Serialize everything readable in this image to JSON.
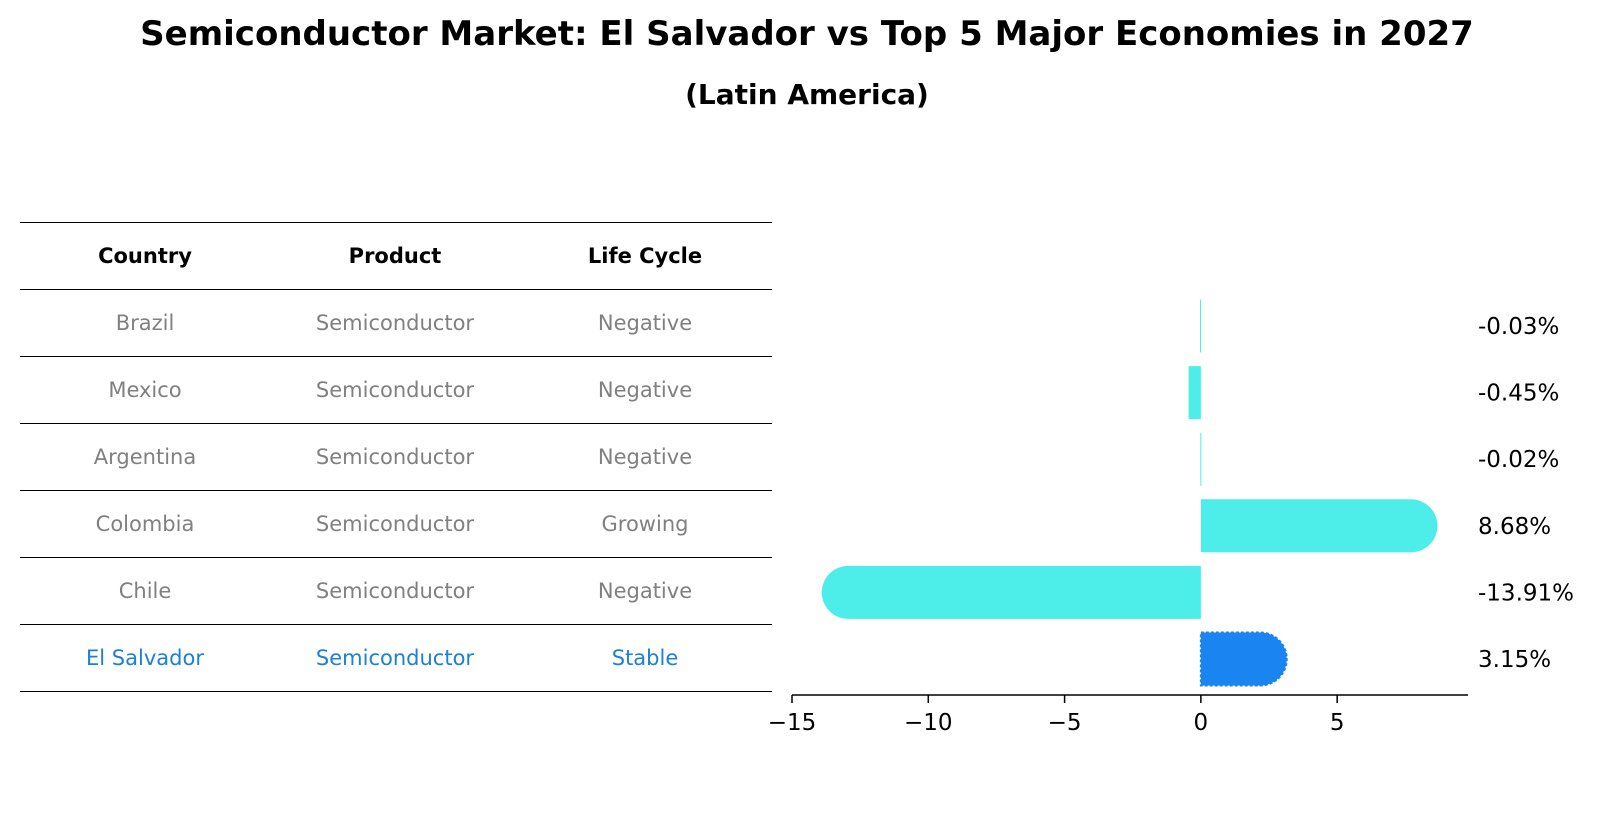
{
  "title": "Semiconductor Market: El Salvador vs Top 5 Major Economies in 2027",
  "subtitle": "(Latin America)",
  "table": {
    "headers": [
      "Country",
      "Product",
      "Life Cycle"
    ],
    "rows": [
      [
        "Brazil",
        "Semiconductor",
        "Negative"
      ],
      [
        "Mexico",
        "Semiconductor",
        "Negative"
      ],
      [
        "Argentina",
        "Semiconductor",
        "Negative"
      ],
      [
        "Colombia",
        "Semiconductor",
        "Growing"
      ],
      [
        "Chile",
        "Semiconductor",
        "Negative"
      ],
      [
        "El Salvador",
        "Semiconductor",
        "Stable"
      ]
    ]
  },
  "chart_data": {
    "type": "bar",
    "orientation": "horizontal",
    "categories": [
      "Brazil",
      "Mexico",
      "Argentina",
      "Colombia",
      "Chile",
      "El Salvador"
    ],
    "values": [
      -0.03,
      -0.45,
      -0.02,
      8.68,
      -13.91,
      3.15
    ],
    "labels": [
      "-0.03%",
      "-0.45%",
      "-0.02%",
      "8.68%",
      "-13.91%",
      "3.15%"
    ],
    "highlight": "El Salvador",
    "xlim": [
      -15,
      9.8
    ],
    "xticks": [
      -15,
      -10,
      -5,
      0,
      5
    ],
    "xtick_labels": [
      "−15",
      "−10",
      "−5",
      "0",
      "5"
    ],
    "colors": {
      "default": "#4deeea",
      "highlight": "#1a84f0"
    }
  },
  "colors": {
    "highlight_text": "#1a80d9",
    "muted_text": "#808080"
  }
}
